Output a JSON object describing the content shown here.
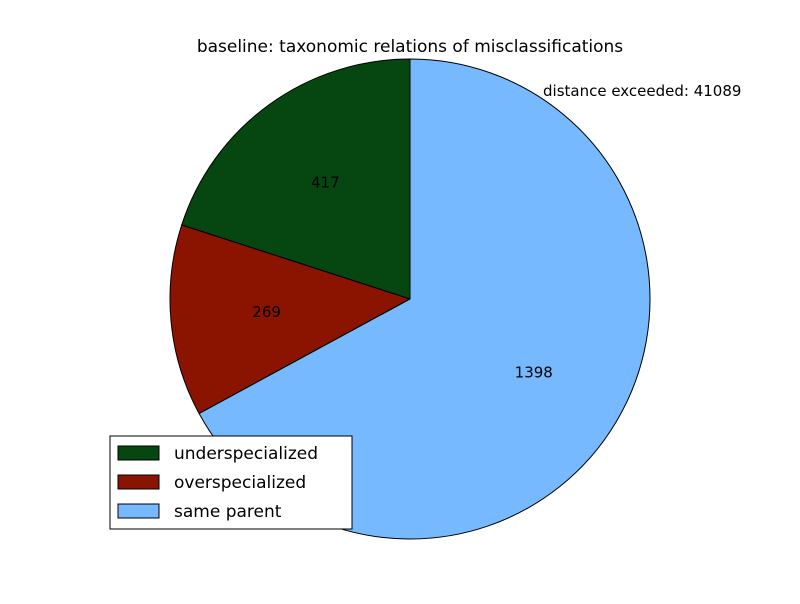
{
  "chart_data": {
    "type": "pie",
    "title": "baseline: taxonomic relations of misclassifications",
    "annotation": "distance exceeded: 41089",
    "slices": [
      {
        "label": "underspecialized",
        "value": 417,
        "color": "#064611"
      },
      {
        "label": "overspecialized",
        "value": 269,
        "color": "#8b1400"
      },
      {
        "label": "same parent",
        "value": 1398,
        "color": "#76b9ff"
      }
    ],
    "start_angle_deg": 90,
    "direction": "counterclockwise",
    "legend_position": "lower-left"
  }
}
